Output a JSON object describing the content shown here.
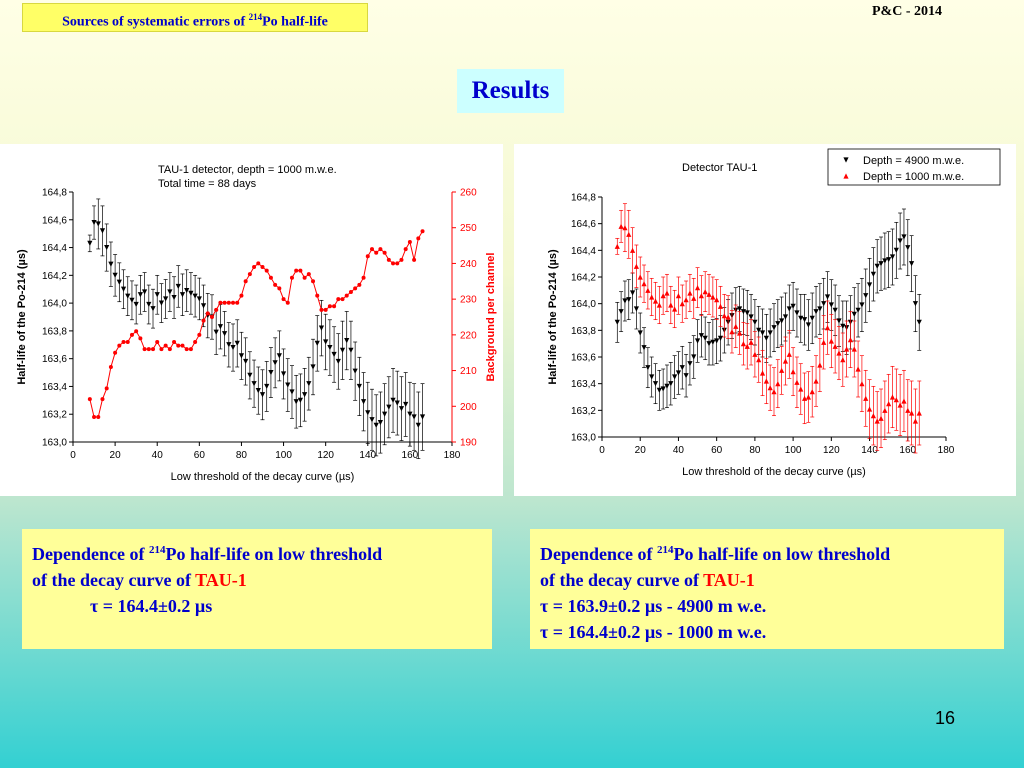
{
  "header": {
    "title_prefix": "Sources of systematic errors of ",
    "title_sup": "214",
    "title_suffix": "Po half-life",
    "conference": "P&C - 2014",
    "results_label": "Results"
  },
  "chart_data": [
    {
      "type": "scatter",
      "annotation_line1": "TAU-1 detector, depth = 1000 m.w.e.",
      "annotation_line2": "Total time = 88 days",
      "xlabel": "Low threshold of the decay curve (µs)",
      "ylabel": "Half-life of the Po-214 (µs)",
      "y2label": "Background per channel",
      "xlim": [
        0,
        180
      ],
      "ylim": [
        163.0,
        164.8
      ],
      "y2lim": [
        190,
        260
      ],
      "x_ticks": [
        "0",
        "20",
        "40",
        "60",
        "80",
        "100",
        "120",
        "140",
        "160",
        "180"
      ],
      "y_ticks": [
        "163,0",
        "163,2",
        "163,4",
        "163,6",
        "163,8",
        "164,0",
        "164,2",
        "164,4",
        "164,6",
        "164,8"
      ],
      "y2_ticks": [
        "190",
        "200",
        "210",
        "220",
        "230",
        "240",
        "250",
        "260"
      ],
      "colors": {
        "halflife": "#000000",
        "background": "#ff0000"
      },
      "series": [
        {
          "role": "half-life",
          "marker": "down-triangle",
          "x": [
            8,
            10,
            12,
            14,
            16,
            18,
            20,
            22,
            24,
            26,
            28,
            30,
            32,
            34,
            36,
            38,
            40,
            42,
            44,
            46,
            48,
            50,
            52,
            54,
            56,
            58,
            60,
            62,
            64,
            66,
            68,
            70,
            72,
            74,
            76,
            78,
            80,
            82,
            84,
            86,
            88,
            90,
            92,
            94,
            96,
            98,
            100,
            102,
            104,
            106,
            108,
            110,
            112,
            114,
            116,
            118,
            120,
            122,
            124,
            126,
            128,
            130,
            132,
            134,
            136,
            138,
            140,
            142,
            144,
            146,
            148,
            150,
            152,
            154,
            156,
            158,
            160,
            162,
            164,
            166
          ],
          "y": [
            164.43,
            164.58,
            164.57,
            164.52,
            164.4,
            164.28,
            164.2,
            164.15,
            164.1,
            164.05,
            164.02,
            163.99,
            164.06,
            164.08,
            163.99,
            163.96,
            164.06,
            164.0,
            164.03,
            164.08,
            164.04,
            164.12,
            164.06,
            164.09,
            164.07,
            164.05,
            164.03,
            163.98,
            163.91,
            163.9,
            163.79,
            163.83,
            163.78,
            163.7,
            163.68,
            163.71,
            163.62,
            163.58,
            163.48,
            163.42,
            163.37,
            163.34,
            163.4,
            163.5,
            163.57,
            163.62,
            163.49,
            163.41,
            163.36,
            163.29,
            163.3,
            163.34,
            163.42,
            163.54,
            163.71,
            163.82,
            163.72,
            163.68,
            163.63,
            163.58,
            163.66,
            163.73,
            163.66,
            163.51,
            163.4,
            163.29,
            163.21,
            163.16,
            163.12,
            163.14,
            163.2,
            163.25,
            163.3,
            163.28,
            163.24,
            163.27,
            163.2,
            163.18,
            163.12,
            163.18
          ],
          "err": [
            0.06,
            0.12,
            0.18,
            0.18,
            0.17,
            0.16,
            0.15,
            0.14,
            0.14,
            0.14,
            0.14,
            0.14,
            0.14,
            0.14,
            0.14,
            0.14,
            0.14,
            0.14,
            0.14,
            0.14,
            0.15,
            0.15,
            0.15,
            0.15,
            0.15,
            0.15,
            0.15,
            0.15,
            0.16,
            0.16,
            0.16,
            0.16,
            0.16,
            0.16,
            0.17,
            0.17,
            0.17,
            0.17,
            0.17,
            0.17,
            0.17,
            0.18,
            0.18,
            0.18,
            0.18,
            0.18,
            0.18,
            0.19,
            0.19,
            0.19,
            0.19,
            0.19,
            0.19,
            0.2,
            0.2,
            0.2,
            0.2,
            0.2,
            0.2,
            0.2,
            0.21,
            0.21,
            0.21,
            0.21,
            0.21,
            0.21,
            0.22,
            0.22,
            0.22,
            0.22,
            0.22,
            0.22,
            0.23,
            0.23,
            0.23,
            0.23,
            0.23,
            0.24,
            0.24,
            0.24
          ]
        },
        {
          "role": "background",
          "marker": "circle",
          "axis": "right",
          "x": [
            8,
            10,
            12,
            14,
            16,
            18,
            20,
            22,
            24,
            26,
            28,
            30,
            32,
            34,
            36,
            38,
            40,
            42,
            44,
            46,
            48,
            50,
            52,
            54,
            56,
            58,
            60,
            62,
            64,
            66,
            68,
            70,
            72,
            74,
            76,
            78,
            80,
            82,
            84,
            86,
            88,
            90,
            92,
            94,
            96,
            98,
            100,
            102,
            104,
            106,
            108,
            110,
            112,
            114,
            116,
            118,
            120,
            122,
            124,
            126,
            128,
            130,
            132,
            134,
            136,
            138,
            140,
            142,
            144,
            146,
            148,
            150,
            152,
            154,
            156,
            158,
            160,
            162,
            164,
            166
          ],
          "y": [
            202,
            197,
            197,
            202,
            205,
            211,
            215,
            217,
            218,
            218,
            220,
            221,
            219,
            216,
            216,
            216,
            218,
            216,
            217,
            216,
            218,
            217,
            217,
            216,
            216,
            218,
            220,
            224,
            226,
            225,
            227,
            229,
            229,
            229,
            229,
            229,
            231,
            235,
            237,
            239,
            240,
            239,
            238,
            236,
            234,
            233,
            230,
            229,
            236,
            238,
            238,
            236,
            237,
            235,
            231,
            227,
            227,
            228,
            228,
            230,
            230,
            231,
            232,
            233,
            234,
            236,
            242,
            244,
            243,
            244,
            243,
            241,
            240,
            240,
            241,
            244,
            246,
            241,
            247,
            249
          ]
        }
      ]
    },
    {
      "type": "scatter",
      "annotation_line1": "Detector TAU-1",
      "xlabel": "Low threshold of the decay curve (µs)",
      "ylabel": "Half-life of the Po-214 (µs)",
      "xlim": [
        0,
        180
      ],
      "ylim": [
        163.0,
        164.8
      ],
      "x_ticks": [
        "0",
        "20",
        "40",
        "60",
        "80",
        "100",
        "120",
        "140",
        "160",
        "180"
      ],
      "y_ticks": [
        "163,0",
        "163,2",
        "163,4",
        "163,6",
        "163,8",
        "164,0",
        "164,2",
        "164,4",
        "164,6",
        "164,8"
      ],
      "legend": [
        "Depth = 4900 m.w.e.",
        "Depth = 1000 m.w.e."
      ],
      "legend_position": "top-right",
      "colors": {
        "depth4900": "#000000",
        "depth1000": "#ff0000"
      },
      "series": [
        {
          "name": "Depth = 4900 m.w.e.",
          "marker": "down-triangle",
          "x": [
            8,
            10,
            12,
            14,
            16,
            18,
            20,
            22,
            24,
            26,
            28,
            30,
            32,
            34,
            36,
            38,
            40,
            42,
            44,
            46,
            48,
            50,
            52,
            54,
            56,
            58,
            60,
            62,
            64,
            66,
            68,
            70,
            72,
            74,
            76,
            78,
            80,
            82,
            84,
            86,
            88,
            90,
            92,
            94,
            96,
            98,
            100,
            102,
            104,
            106,
            108,
            110,
            112,
            114,
            116,
            118,
            120,
            122,
            124,
            126,
            128,
            130,
            132,
            134,
            136,
            138,
            140,
            142,
            144,
            146,
            148,
            150,
            152,
            154,
            156,
            158,
            160,
            162,
            164,
            166
          ],
          "y": [
            163.86,
            163.94,
            164.02,
            164.03,
            164.08,
            163.96,
            163.78,
            163.67,
            163.52,
            163.45,
            163.4,
            163.35,
            163.36,
            163.38,
            163.4,
            163.45,
            163.48,
            163.52,
            163.46,
            163.55,
            163.6,
            163.72,
            163.76,
            163.74,
            163.7,
            163.71,
            163.72,
            163.74,
            163.8,
            163.86,
            163.91,
            163.95,
            163.96,
            163.94,
            163.93,
            163.9,
            163.86,
            163.8,
            163.78,
            163.74,
            163.78,
            163.82,
            163.85,
            163.87,
            163.9,
            163.96,
            163.98,
            163.93,
            163.89,
            163.88,
            163.84,
            163.89,
            163.94,
            163.96,
            164.0,
            164.05,
            163.99,
            163.95,
            163.87,
            163.83,
            163.82,
            163.86,
            163.92,
            163.95,
            163.99,
            164.06,
            164.14,
            164.22,
            164.28,
            164.3,
            164.32,
            164.33,
            164.35,
            164.4,
            164.47,
            164.5,
            164.42,
            164.3,
            164.0,
            163.86
          ],
          "err": [
            0.15,
            0.15,
            0.15,
            0.15,
            0.15,
            0.15,
            0.15,
            0.15,
            0.15,
            0.15,
            0.15,
            0.15,
            0.15,
            0.16,
            0.16,
            0.16,
            0.16,
            0.16,
            0.16,
            0.16,
            0.16,
            0.16,
            0.16,
            0.16,
            0.16,
            0.17,
            0.17,
            0.17,
            0.17,
            0.17,
            0.17,
            0.17,
            0.17,
            0.17,
            0.17,
            0.17,
            0.17,
            0.18,
            0.18,
            0.18,
            0.18,
            0.18,
            0.18,
            0.18,
            0.18,
            0.18,
            0.18,
            0.18,
            0.18,
            0.19,
            0.19,
            0.19,
            0.19,
            0.19,
            0.19,
            0.19,
            0.19,
            0.19,
            0.19,
            0.19,
            0.2,
            0.2,
            0.2,
            0.2,
            0.2,
            0.2,
            0.2,
            0.2,
            0.2,
            0.2,
            0.21,
            0.21,
            0.21,
            0.21,
            0.21,
            0.21,
            0.21,
            0.21,
            0.21,
            0.21
          ]
        },
        {
          "name": "Depth = 1000 m.w.e.",
          "marker": "up-triangle",
          "x": [
            8,
            10,
            12,
            14,
            16,
            18,
            20,
            22,
            24,
            26,
            28,
            30,
            32,
            34,
            36,
            38,
            40,
            42,
            44,
            46,
            48,
            50,
            52,
            54,
            56,
            58,
            60,
            62,
            64,
            66,
            68,
            70,
            72,
            74,
            76,
            78,
            80,
            82,
            84,
            86,
            88,
            90,
            92,
            94,
            96,
            98,
            100,
            102,
            104,
            106,
            108,
            110,
            112,
            114,
            116,
            118,
            120,
            122,
            124,
            126,
            128,
            130,
            132,
            134,
            136,
            138,
            140,
            142,
            144,
            146,
            148,
            150,
            152,
            154,
            156,
            158,
            160,
            162,
            164,
            166
          ],
          "y": [
            164.43,
            164.58,
            164.57,
            164.52,
            164.4,
            164.28,
            164.2,
            164.15,
            164.1,
            164.05,
            164.02,
            163.99,
            164.06,
            164.08,
            163.99,
            163.96,
            164.06,
            164.0,
            164.03,
            164.08,
            164.04,
            164.12,
            164.06,
            164.09,
            164.07,
            164.05,
            164.03,
            163.98,
            163.91,
            163.9,
            163.79,
            163.83,
            163.78,
            163.7,
            163.68,
            163.71,
            163.62,
            163.58,
            163.48,
            163.42,
            163.37,
            163.34,
            163.4,
            163.5,
            163.57,
            163.62,
            163.49,
            163.41,
            163.36,
            163.29,
            163.3,
            163.34,
            163.42,
            163.54,
            163.71,
            163.82,
            163.72,
            163.68,
            163.63,
            163.58,
            163.66,
            163.73,
            163.66,
            163.51,
            163.4,
            163.29,
            163.21,
            163.16,
            163.12,
            163.14,
            163.2,
            163.25,
            163.3,
            163.28,
            163.24,
            163.27,
            163.2,
            163.18,
            163.12,
            163.18
          ],
          "err": [
            0.06,
            0.12,
            0.18,
            0.18,
            0.17,
            0.16,
            0.15,
            0.14,
            0.14,
            0.14,
            0.14,
            0.14,
            0.14,
            0.14,
            0.14,
            0.14,
            0.14,
            0.14,
            0.14,
            0.14,
            0.15,
            0.15,
            0.15,
            0.15,
            0.15,
            0.15,
            0.15,
            0.15,
            0.16,
            0.16,
            0.16,
            0.16,
            0.16,
            0.16,
            0.17,
            0.17,
            0.17,
            0.17,
            0.17,
            0.17,
            0.17,
            0.18,
            0.18,
            0.18,
            0.18,
            0.18,
            0.18,
            0.19,
            0.19,
            0.19,
            0.19,
            0.19,
            0.19,
            0.2,
            0.2,
            0.2,
            0.2,
            0.2,
            0.2,
            0.2,
            0.21,
            0.21,
            0.21,
            0.21,
            0.21,
            0.21,
            0.22,
            0.22,
            0.22,
            0.22,
            0.22,
            0.22,
            0.23,
            0.23,
            0.23,
            0.23,
            0.23,
            0.24,
            0.24,
            0.24
          ]
        }
      ]
    }
  ],
  "captions": {
    "left": {
      "line1_prefix": "Dependence of ",
      "line1_sup": "214",
      "line1_suffix": "Po half-life on low threshold",
      "line2_prefix": "of the decay curve of ",
      "line2_red": "TAU-1",
      "line3": "τ  = 164.4±0.2 µs"
    },
    "right": {
      "line1_prefix": "Dependence of ",
      "line1_sup": "214",
      "line1_suffix": "Po half-life on low threshold",
      "line2_prefix": "of the decay curve of ",
      "line2_red": "TAU-1",
      "line3": "τ  = 163.9±0.2 µs  - 4900 m w.e.",
      "line4": "τ  = 164.4±0.2 µs  - 1000 m w.e."
    }
  },
  "page_number": "16"
}
